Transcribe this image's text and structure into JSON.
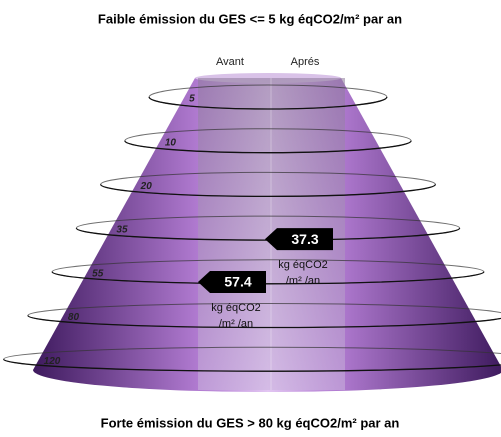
{
  "chart_data": {
    "type": "cone",
    "title": "Faible émission du GES <= 5 kg éqCO2/m² par an",
    "footer": "Forte émission du GES  > 80 kg éqCO2/m² par an",
    "categories": [
      "Avant",
      "Aprés"
    ],
    "values": [
      57.4,
      37.3
    ],
    "unit_line1": "kg éqCO2",
    "unit_line2": "/m² /an",
    "yticks": [
      5,
      10,
      20,
      35,
      55,
      80,
      120
    ],
    "color": "#7a3fa0"
  }
}
